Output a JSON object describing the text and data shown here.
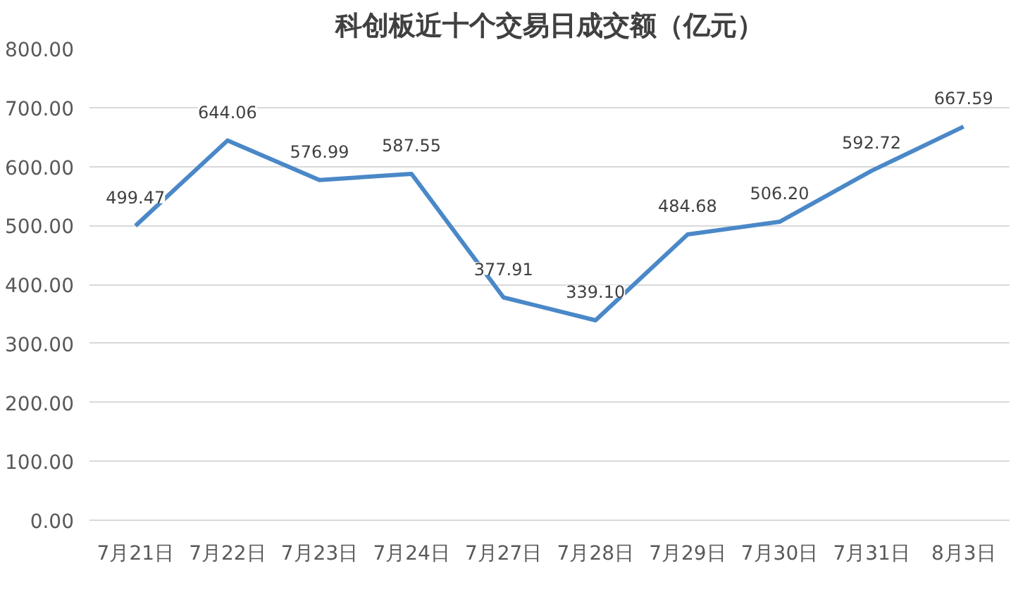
{
  "chart_data": {
    "type": "line",
    "title": "科创板近十个交易日成交额（亿元）",
    "categories": [
      "7月21日",
      "7月22日",
      "7月23日",
      "7月24日",
      "7月27日",
      "7月28日",
      "7月29日",
      "7月30日",
      "7月31日",
      "8月3日"
    ],
    "series": [
      {
        "color": "#4a88c8",
        "values": [
          499.47,
          644.06,
          576.99,
          587.55,
          377.91,
          339.1,
          484.68,
          506.2,
          592.72,
          667.59
        ],
        "value_labels": [
          "499.47",
          "644.06",
          "576.99",
          "587.55",
          "377.91",
          "339.10",
          "484.68",
          "506.20",
          "592.72",
          "667.59"
        ]
      }
    ],
    "ylim": [
      0,
      800
    ],
    "yticks": [
      {
        "value": 0,
        "label": "0.00"
      },
      {
        "value": 100,
        "label": "100.00"
      },
      {
        "value": 200,
        "label": "200.00"
      },
      {
        "value": 300,
        "label": "300.00"
      },
      {
        "value": 400,
        "label": "400.00"
      },
      {
        "value": 500,
        "label": "500.00"
      },
      {
        "value": 600,
        "label": "600.00"
      },
      {
        "value": 700,
        "label": "700.00"
      },
      {
        "value": 800,
        "label": "800.00"
      }
    ],
    "grid": "y",
    "marker": "none",
    "line_style": "solid"
  }
}
